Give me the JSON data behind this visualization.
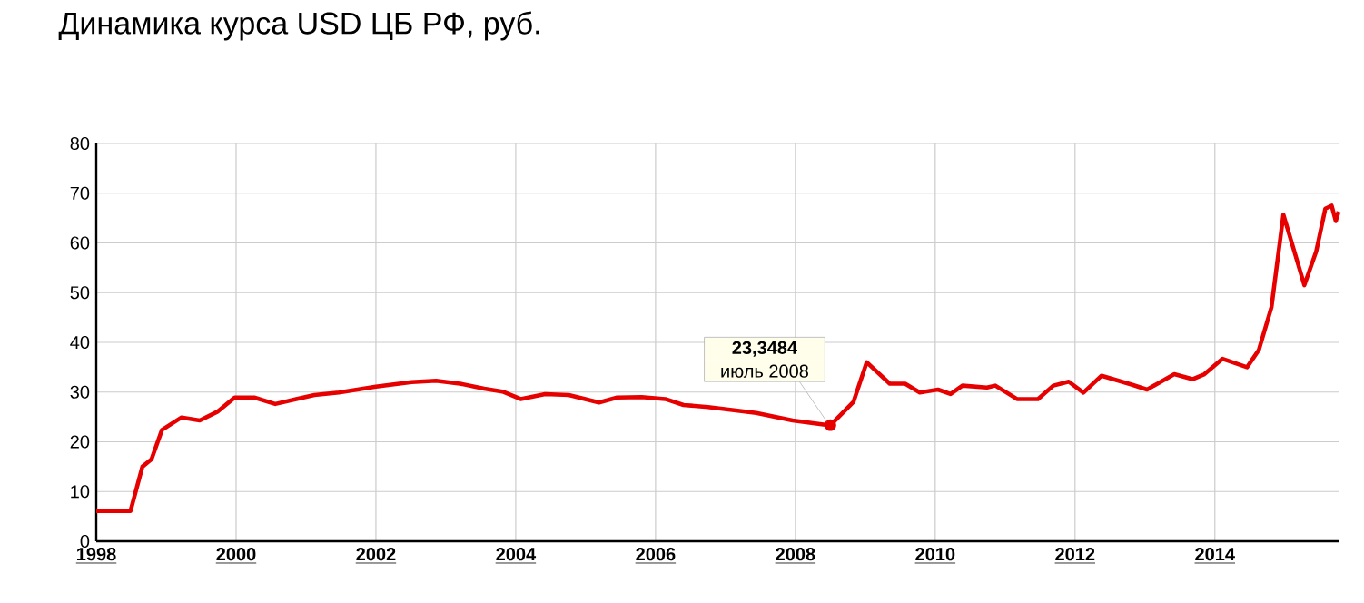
{
  "chart_data": {
    "type": "line",
    "title": "Динамика курса USD ЦБ РФ, руб.",
    "x": [
      1998.0,
      1998.49,
      1998.66,
      1998.79,
      1998.94,
      1999.22,
      1999.48,
      1999.74,
      1999.98,
      2000.26,
      2000.56,
      2000.86,
      2001.12,
      2001.47,
      2002.0,
      2002.51,
      2002.86,
      2003.2,
      2003.55,
      2003.81,
      2004.07,
      2004.42,
      2004.76,
      2005.19,
      2005.45,
      2005.8,
      2006.14,
      2006.4,
      2006.75,
      2007.44,
      2007.96,
      2008.5,
      2008.83,
      2009.02,
      2009.35,
      2009.57,
      2009.78,
      2010.04,
      2010.22,
      2010.39,
      2010.74,
      2010.86,
      2011.17,
      2011.47,
      2011.69,
      2011.91,
      2012.12,
      2012.38,
      2012.81,
      2013.03,
      2013.42,
      2013.68,
      2013.85,
      2014.11,
      2014.46,
      2014.63,
      2014.81,
      2014.98,
      2015.28,
      2015.45,
      2015.58,
      2015.67,
      2015.73,
      2015.77
    ],
    "series": [
      {
        "color": "#e60000",
        "values": [
          6.1,
          6.1,
          15.0,
          16.5,
          22.4,
          24.9,
          24.3,
          26.1,
          28.9,
          28.9,
          27.6,
          28.6,
          29.4,
          29.9,
          31.1,
          32.0,
          32.3,
          31.7,
          30.7,
          30.1,
          28.6,
          29.6,
          29.4,
          27.9,
          28.9,
          29.0,
          28.6,
          27.4,
          27.0,
          25.8,
          24.3,
          23.3,
          28.0,
          36.0,
          31.7,
          31.7,
          29.9,
          30.5,
          29.6,
          31.3,
          30.9,
          31.3,
          28.6,
          28.6,
          31.3,
          32.1,
          29.9,
          33.3,
          31.5,
          30.5,
          33.6,
          32.6,
          33.6,
          36.7,
          35.0,
          38.5,
          47.1,
          65.7,
          51.5,
          58.3,
          66.9,
          67.5,
          64.4,
          66.3
        ]
      }
    ],
    "xlim": [
      1998,
      2015.77
    ],
    "xticks": [
      1998,
      2000,
      2002,
      2004,
      2006,
      2008,
      2010,
      2012,
      2014
    ],
    "ylim": [
      0,
      80
    ],
    "yticks": [
      0,
      10,
      20,
      30,
      40,
      50,
      60,
      70,
      80
    ],
    "grid": true,
    "marker": "none",
    "line_style": "solid",
    "annotations": [
      "23,3484",
      {
        "text": "июль 2008",
        "x": 2008.5,
        "y": 23.3484
      }
    ]
  }
}
